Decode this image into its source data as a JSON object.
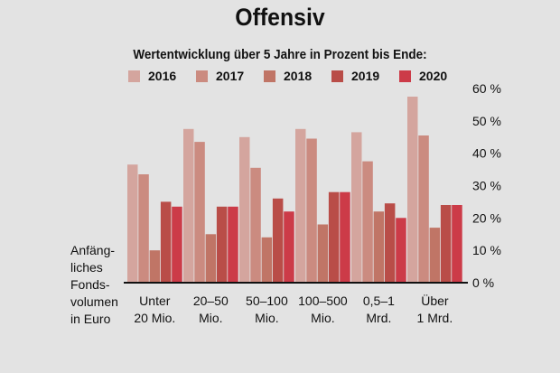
{
  "chart_data": {
    "type": "bar",
    "title": "Offensiv",
    "subtitle": "Wertentwicklung über 5 Jahre in Prozent bis Ende:",
    "xlabel": "Anfäng-\nliches\nFonds-\nvolumen\nin Euro",
    "ylabel": "",
    "categories": [
      "Unter\n20 Mio.",
      "20–50\nMio.",
      "50–100\nMio.",
      "100–500\nMio.",
      "0,5–1\nMrd.",
      "Über\n1 Mrd."
    ],
    "series": [
      {
        "name": "2016",
        "color": "#d4a59e",
        "values": [
          36.5,
          47.5,
          45,
          47.5,
          46.5,
          57.5
        ]
      },
      {
        "name": "2017",
        "color": "#cb8b80",
        "values": [
          33.5,
          43.5,
          35.5,
          44.5,
          37.5,
          45.5
        ]
      },
      {
        "name": "2018",
        "color": "#c07566",
        "values": [
          10,
          15,
          14,
          18,
          22,
          17
        ]
      },
      {
        "name": "2019",
        "color": "#b94d48",
        "values": [
          25,
          23.5,
          26,
          28,
          24.5,
          24
        ]
      },
      {
        "name": "2020",
        "color": "#cc3b48",
        "values": [
          23.5,
          23.5,
          22,
          28,
          20,
          24
        ]
      }
    ],
    "ylim": [
      0,
      60
    ],
    "yticks": [
      0,
      10,
      20,
      30,
      40,
      50,
      60
    ],
    "ytick_labels": [
      "0 %",
      "10 %",
      "20 %",
      "30 %",
      "40 %",
      "50 %",
      "60 %"
    ],
    "grid": false,
    "legend_position": "top"
  }
}
